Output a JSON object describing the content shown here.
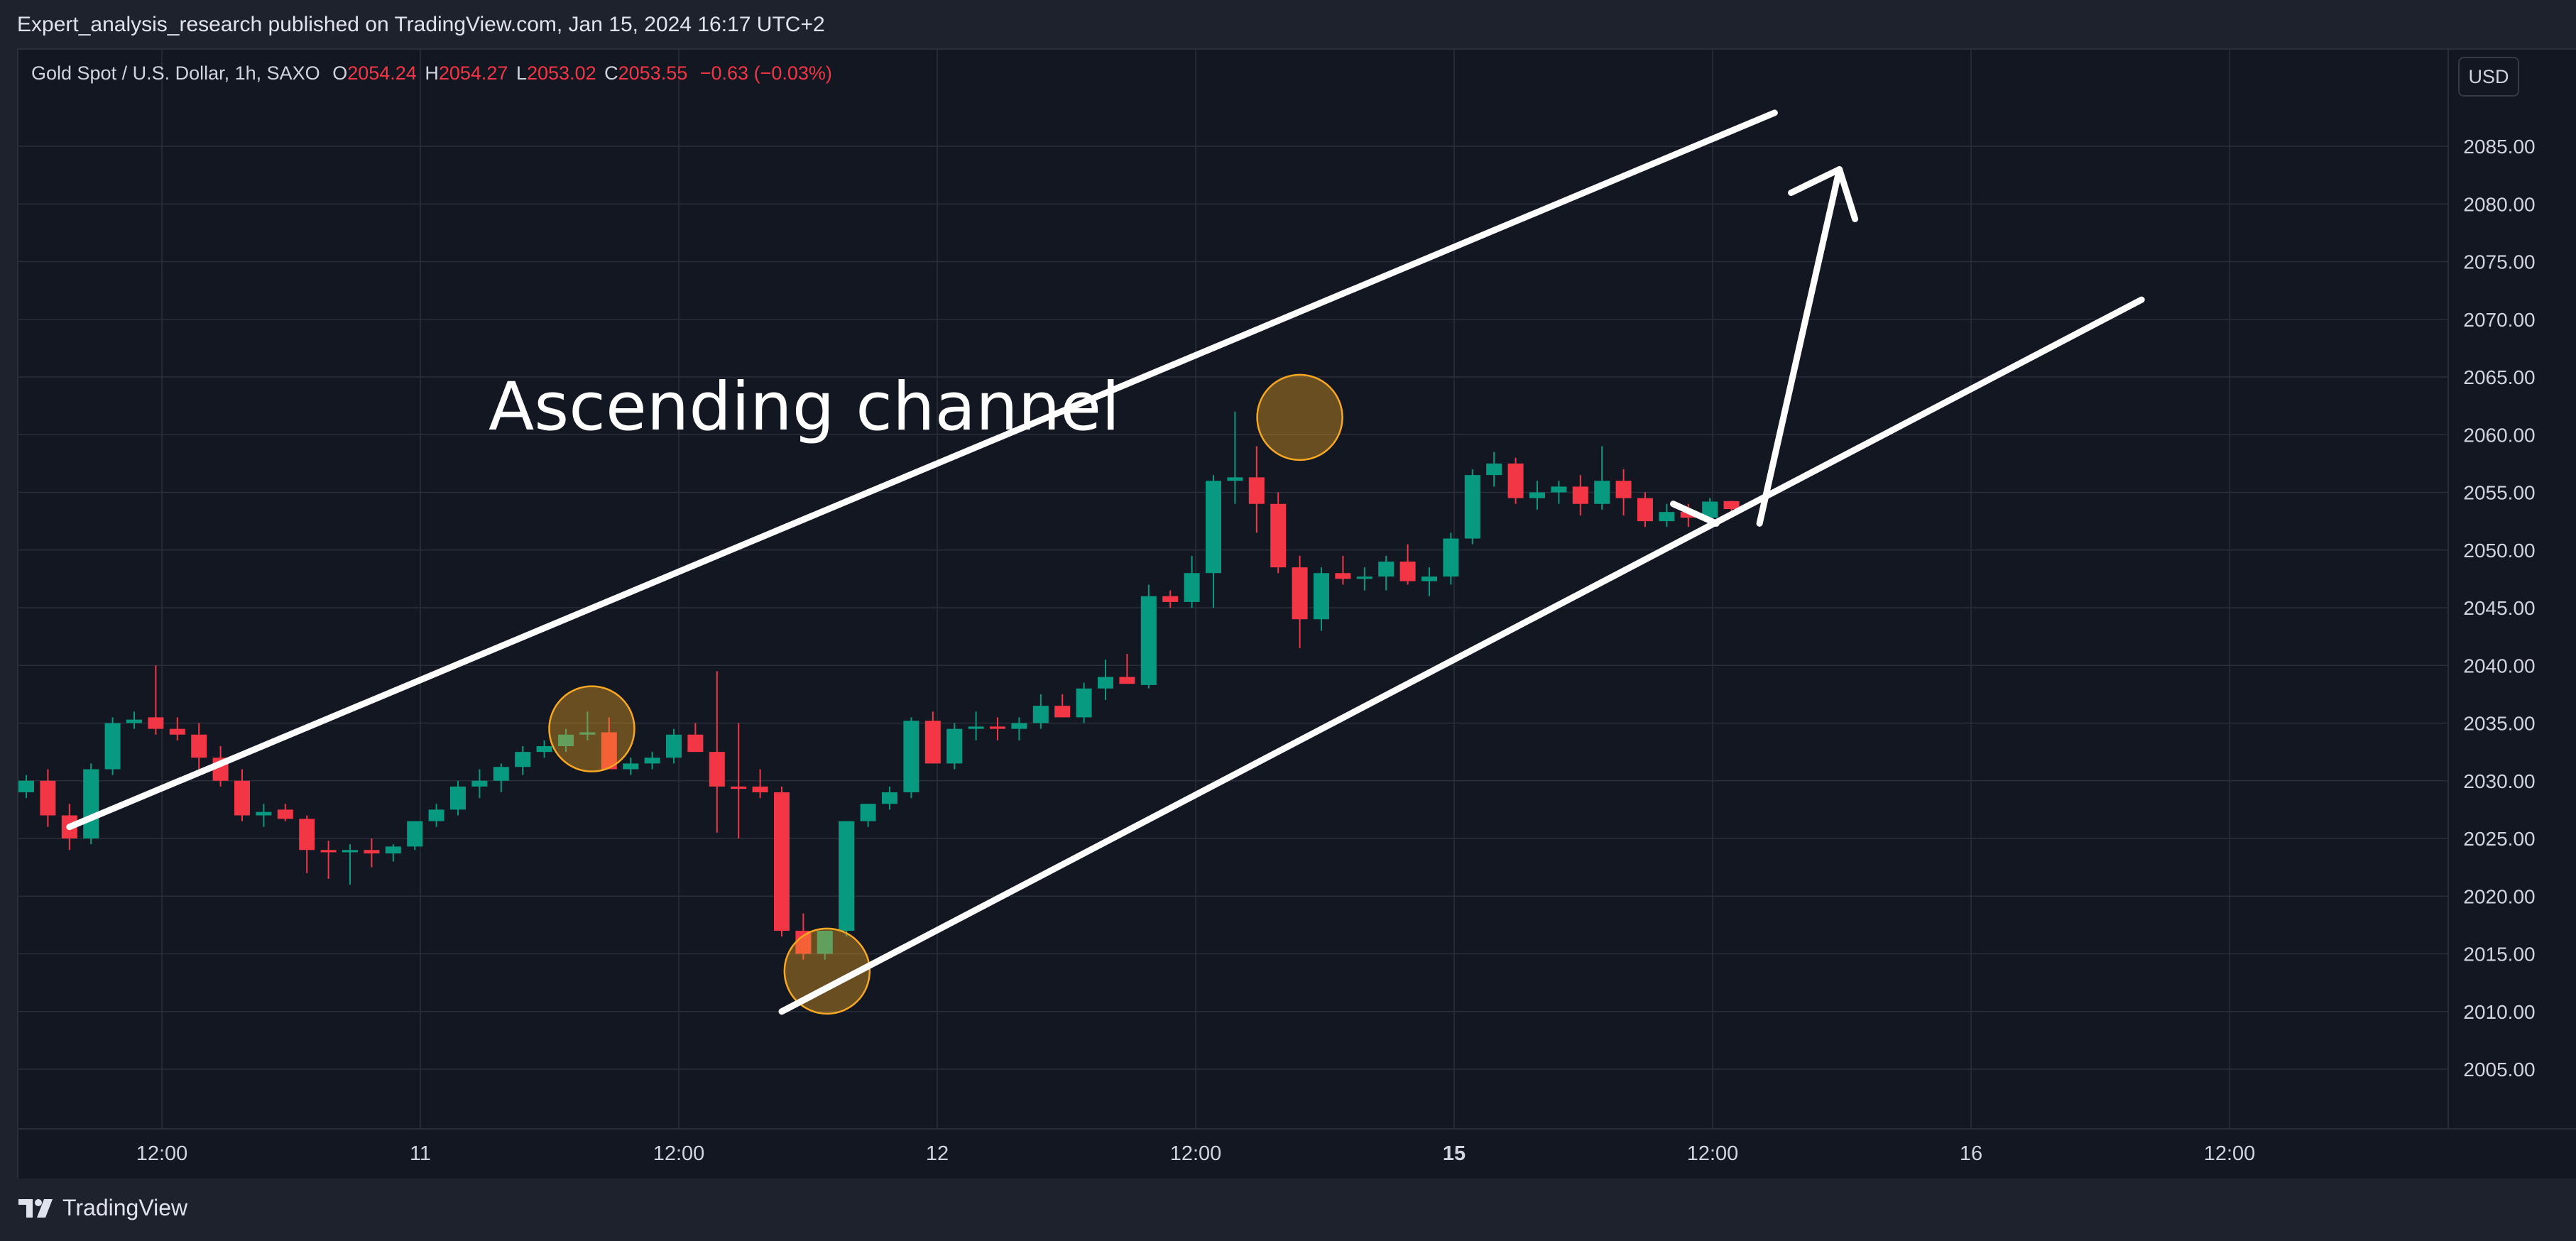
{
  "header": {
    "published": "Expert_analysis_research published on TradingView.com, Jan 15, 2024 16:17 UTC+2"
  },
  "legend": {
    "symbol": "Gold Spot / U.S. Dollar, 1h, SAXO",
    "o_label": "O",
    "o_value": "2054.24",
    "h_label": "H",
    "h_value": "2054.27",
    "l_label": "L",
    "l_value": "2053.02",
    "c_label": "C",
    "c_value": "2053.55",
    "change": "−0.63 (−0.03%)"
  },
  "currency_button": "USD",
  "brand": {
    "logo_text": "TradingView"
  },
  "colors": {
    "background": "#131722",
    "up": "#089981",
    "down": "#f23645",
    "grid": "#2a2e39",
    "annotation": "#ffffff",
    "circle": "#f7a721"
  },
  "chart_data": {
    "type": "candlestick",
    "annotation_text": "Ascending channel",
    "price_ticks": [
      "2085.00",
      "2080.00",
      "2075.00",
      "2070.00",
      "2065.00",
      "2060.00",
      "2055.00",
      "2050.00",
      "2045.00",
      "2040.00",
      "2035.00",
      "2030.00",
      "2025.00",
      "2020.00",
      "2015.00",
      "2010.00",
      "2005.00"
    ],
    "time_ticks": [
      {
        "label": "12:00",
        "bold": false
      },
      {
        "label": "11",
        "bold": false
      },
      {
        "label": "12:00",
        "bold": false
      },
      {
        "label": "12",
        "bold": false
      },
      {
        "label": "12:00",
        "bold": false
      },
      {
        "label": "15",
        "bold": true
      },
      {
        "label": "12:00",
        "bold": false
      },
      {
        "label": "16",
        "bold": false
      },
      {
        "label": "12:00",
        "bold": false
      }
    ],
    "ylim": [
      2000,
      2092
    ],
    "candles": [
      [
        2029.0,
        2030.5,
        2028.5,
        2030.0
      ],
      [
        2030.0,
        2031.0,
        2026.0,
        2027.0
      ],
      [
        2027.0,
        2028.0,
        2024.0,
        2025.0
      ],
      [
        2025.0,
        2031.5,
        2024.5,
        2031.0
      ],
      [
        2031.0,
        2035.5,
        2030.5,
        2035.0
      ],
      [
        2035.0,
        2036.0,
        2034.5,
        2035.3
      ],
      [
        2035.5,
        2040.0,
        2034.0,
        2034.5
      ],
      [
        2034.5,
        2035.5,
        2033.5,
        2034.0
      ],
      [
        2034.0,
        2035.0,
        2031.0,
        2032.0
      ],
      [
        2032.0,
        2033.0,
        2029.5,
        2030.0
      ],
      [
        2030.0,
        2031.0,
        2026.5,
        2027.0
      ],
      [
        2027.0,
        2028.0,
        2026.0,
        2027.3
      ],
      [
        2027.5,
        2028.0,
        2026.5,
        2026.7
      ],
      [
        2026.7,
        2027.0,
        2022.0,
        2024.0
      ],
      [
        2024.0,
        2024.8,
        2021.5,
        2023.8
      ],
      [
        2023.8,
        2024.5,
        2021.0,
        2024.0
      ],
      [
        2024.0,
        2025.0,
        2022.5,
        2023.7
      ],
      [
        2023.7,
        2024.5,
        2023.0,
        2024.3
      ],
      [
        2024.3,
        2026.5,
        2024.0,
        2026.5
      ],
      [
        2026.5,
        2028.0,
        2026.0,
        2027.5
      ],
      [
        2027.5,
        2030.0,
        2027.0,
        2029.5
      ],
      [
        2029.5,
        2031.0,
        2028.5,
        2030.0
      ],
      [
        2030.0,
        2031.5,
        2029.0,
        2031.2
      ],
      [
        2031.2,
        2033.0,
        2030.5,
        2032.5
      ],
      [
        2032.5,
        2033.5,
        2032.0,
        2033.0
      ],
      [
        2033.0,
        2034.5,
        2032.5,
        2034.0
      ],
      [
        2034.0,
        2036.0,
        2033.5,
        2034.2
      ],
      [
        2034.2,
        2035.5,
        2031.0,
        2031.0
      ],
      [
        2031.0,
        2032.0,
        2030.5,
        2031.5
      ],
      [
        2031.5,
        2032.5,
        2031.0,
        2032.0
      ],
      [
        2032.0,
        2034.5,
        2031.5,
        2034.0
      ],
      [
        2034.0,
        2035.0,
        2032.5,
        2032.5
      ],
      [
        2032.5,
        2039.5,
        2025.5,
        2029.5
      ],
      [
        2029.5,
        2035.0,
        2025.0,
        2029.3
      ],
      [
        2029.5,
        2031.0,
        2028.5,
        2029.0
      ],
      [
        2029.0,
        2029.5,
        2016.5,
        2017.0
      ],
      [
        2017.0,
        2018.5,
        2014.5,
        2015.0
      ],
      [
        2015.0,
        2017.0,
        2014.5,
        2017.0
      ],
      [
        2017.0,
        2026.5,
        2016.5,
        2026.5
      ],
      [
        2026.5,
        2028.0,
        2026.0,
        2028.0
      ],
      [
        2028.0,
        2029.5,
        2027.5,
        2029.0
      ],
      [
        2029.0,
        2035.5,
        2028.5,
        2035.2
      ],
      [
        2035.2,
        2036.0,
        2031.5,
        2031.5
      ],
      [
        2031.5,
        2035.0,
        2031.0,
        2034.5
      ],
      [
        2034.5,
        2036.0,
        2033.5,
        2034.7
      ],
      [
        2034.7,
        2035.5,
        2033.5,
        2034.5
      ],
      [
        2034.5,
        2035.5,
        2033.5,
        2035.0
      ],
      [
        2035.0,
        2037.5,
        2034.5,
        2036.5
      ],
      [
        2036.5,
        2037.5,
        2035.5,
        2035.5
      ],
      [
        2035.5,
        2038.5,
        2035.0,
        2038.0
      ],
      [
        2038.0,
        2040.5,
        2037.0,
        2039.0
      ],
      [
        2039.0,
        2041.0,
        2038.5,
        2038.4
      ],
      [
        2038.3,
        2047.0,
        2038.0,
        2046.0
      ],
      [
        2046.0,
        2046.5,
        2045.0,
        2045.5
      ],
      [
        2045.5,
        2049.5,
        2045.0,
        2048.0
      ],
      [
        2048.0,
        2056.5,
        2045.0,
        2056.0
      ],
      [
        2056.0,
        2062.0,
        2054.0,
        2056.3
      ],
      [
        2056.3,
        2059.0,
        2051.5,
        2054.0
      ],
      [
        2054.0,
        2055.0,
        2048.0,
        2048.5
      ],
      [
        2048.5,
        2049.5,
        2041.5,
        2044.0
      ],
      [
        2044.0,
        2048.5,
        2043.0,
        2048.0
      ],
      [
        2048.0,
        2049.5,
        2047.0,
        2047.5
      ],
      [
        2047.5,
        2048.5,
        2046.5,
        2047.7
      ],
      [
        2047.7,
        2049.5,
        2046.5,
        2049.0
      ],
      [
        2049.0,
        2050.5,
        2047.0,
        2047.3
      ],
      [
        2047.3,
        2048.5,
        2046.0,
        2047.7
      ],
      [
        2047.7,
        2051.5,
        2047.0,
        2051.0
      ],
      [
        2051.0,
        2057.0,
        2050.5,
        2056.5
      ],
      [
        2056.5,
        2058.5,
        2055.5,
        2057.5
      ],
      [
        2057.5,
        2058.0,
        2054.0,
        2054.5
      ],
      [
        2054.5,
        2056.0,
        2053.5,
        2055.0
      ],
      [
        2055.0,
        2056.0,
        2054.0,
        2055.5
      ],
      [
        2055.5,
        2056.5,
        2053.0,
        2054.0
      ],
      [
        2054.0,
        2059.0,
        2053.5,
        2056.0
      ],
      [
        2056.0,
        2057.0,
        2053.0,
        2054.5
      ],
      [
        2054.5,
        2055.0,
        2052.0,
        2052.5
      ],
      [
        2052.5,
        2054.0,
        2052.0,
        2053.3
      ],
      [
        2053.3,
        2054.0,
        2052.0,
        2052.8
      ],
      [
        2052.8,
        2054.5,
        2052.5,
        2054.2
      ],
      [
        2054.24,
        2054.27,
        2053.02,
        2053.55
      ]
    ],
    "channel_upper": [
      [
        2,
        2026.0
      ],
      [
        81,
        2087.9
      ]
    ],
    "channel_lower": [
      [
        35,
        2010.0
      ],
      [
        98,
        2071.7
      ]
    ],
    "arrow": {
      "from": [
        80.3,
        2052.3
      ],
      "to": [
        84.0,
        2083.0
      ]
    },
    "arrow_connector": {
      "from": [
        76.3,
        2054.0
      ],
      "to": [
        78.3,
        2052.3
      ]
    },
    "touch_circles": [
      [
        26.2,
        2034.5
      ],
      [
        59.0,
        2061.5
      ],
      [
        37.1,
        2013.5
      ]
    ]
  }
}
